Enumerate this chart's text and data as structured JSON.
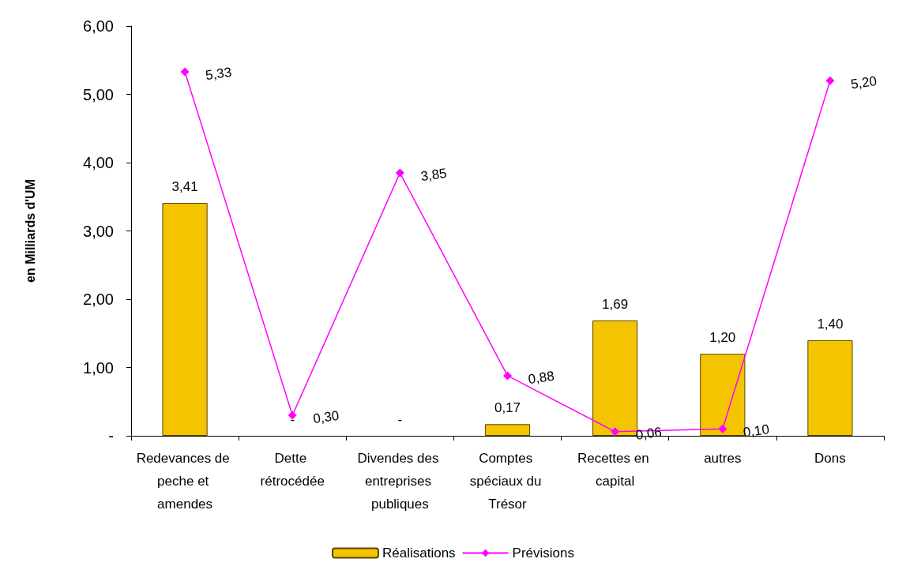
{
  "chart_data": {
    "type": "bar",
    "ylabel": "en Milliards d'UM",
    "categories": [
      "Redevances de peche et amendes",
      "Dette rétrocédée",
      "Divendes des entreprises publiques",
      "Comptes spéciaux du Trésor",
      "Recettes en capital",
      "autres",
      "Dons"
    ],
    "series": [
      {
        "name": "Réalisations",
        "color": "#f5c400",
        "values": [
          3.41,
          0,
          0,
          0.17,
          1.69,
          1.2,
          1.4
        ],
        "value_labels": [
          "3,41",
          "-",
          "-",
          "0,17",
          "1,69",
          "1,20",
          "1,40"
        ]
      },
      {
        "name": "Prévisions",
        "type": "line",
        "color": "#ff00ff",
        "marker": "diamond",
        "values": [
          5.33,
          0.3,
          3.85,
          0.88,
          0.06,
          0.1,
          5.2
        ],
        "value_labels": [
          "5,33",
          "0,30",
          "3,85",
          "0,88",
          "0,06",
          "0,10",
          "5,20"
        ]
      }
    ],
    "ylim": [
      0,
      6
    ],
    "yticks": [
      {
        "value": 0,
        "label": "-"
      },
      {
        "value": 1,
        "label": "1,00"
      },
      {
        "value": 2,
        "label": "2,00"
      },
      {
        "value": 3,
        "label": "3,00"
      },
      {
        "value": 4,
        "label": "4,00"
      },
      {
        "value": 5,
        "label": "5,00"
      },
      {
        "value": 6,
        "label": "6,00"
      }
    ],
    "grid": false,
    "legend": "bottom"
  }
}
